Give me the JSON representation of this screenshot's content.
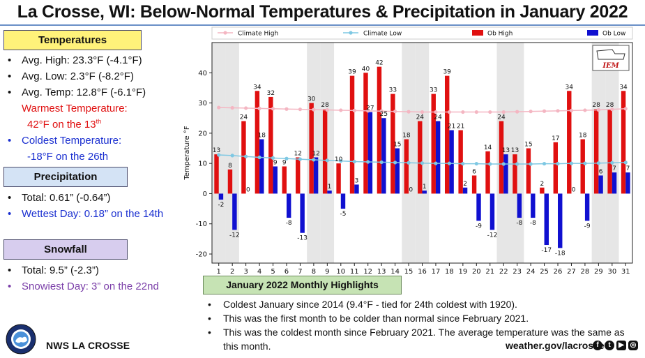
{
  "title": "La Crosse, WI:  Below-Normal Temperatures & Precipitation in January 2022",
  "temperatures": {
    "header": "Temperatures",
    "items": [
      {
        "text": "Avg. High:  23.3°F (-4.1°F)"
      },
      {
        "text": "Avg. Low:  2.3°F (-8.2°F)"
      },
      {
        "text": "Avg. Temp:  12.8°F (-6.1°F)"
      }
    ],
    "warmest_label": "Warmest Temperature:",
    "warmest_value": "42°F on the 13",
    "warmest_sup": "th",
    "coldest_label": "Coldest Temperature:",
    "coldest_value": "-18°F on the 26th"
  },
  "precipitation": {
    "header": "Precipitation",
    "total": "Total:  0.61” (-0.64”)",
    "wettest": "Wettest Day: 0.18” on the 14th"
  },
  "snowfall": {
    "header": "Snowfall",
    "total": "Total:  9.5” (-2.3”)",
    "snowiest": "Snowiest Day: 3” on the 22nd"
  },
  "highlights": {
    "header": "January 2022 Monthly Highlights",
    "items": [
      "Coldest January since 2014 (9.4°F - tied for 24th coldest with 1920).",
      "This was the first month to be colder than normal since February 2021.",
      "This was the coldest month since February 2021. The average temperature was the same as this month."
    ]
  },
  "footer": {
    "org": "NWS LA CROSSE",
    "website": "weather.gov/lacrosse",
    "logo_text": "NATIONAL WEATHER SERVICE",
    "logo_sub": "LA CROSSE, WI",
    "social_icons": [
      "facebook-icon",
      "twitter-icon",
      "youtube-icon",
      "instagram-icon"
    ]
  },
  "chart_data": {
    "type": "bar",
    "ylabel": "Temperature °F",
    "xlabel": "",
    "ylim": [
      -23,
      50
    ],
    "yticks": [
      -20,
      -10,
      0,
      10,
      20,
      30,
      40
    ],
    "categories": [
      "1",
      "2",
      "3",
      "4",
      "5",
      "6",
      "7",
      "8",
      "9",
      "10",
      "11",
      "12",
      "13",
      "14",
      "15",
      "16",
      "17",
      "18",
      "19",
      "20",
      "21",
      "22",
      "23",
      "24",
      "25",
      "26",
      "27",
      "28",
      "29",
      "30",
      "31"
    ],
    "weekend_shading_days": [
      1,
      2,
      8,
      9,
      15,
      16,
      22,
      23,
      29,
      30
    ],
    "legend_position": "top",
    "badge_text": "IEM",
    "series": [
      {
        "name": "Climate High",
        "kind": "line",
        "color": "#f4b6c2",
        "values": [
          28.5,
          28.4,
          28.3,
          28.2,
          28.1,
          28.0,
          27.9,
          27.8,
          27.7,
          27.6,
          27.5,
          27.4,
          27.3,
          27.2,
          27.1,
          27.0,
          27.0,
          27.0,
          27.0,
          27.0,
          27.0,
          27.0,
          27.1,
          27.2,
          27.3,
          27.4,
          27.5,
          27.6,
          27.7,
          27.9,
          28.1
        ]
      },
      {
        "name": "Climate Low",
        "kind": "line",
        "color": "#7ec8e3",
        "values": [
          12.8,
          12.6,
          12.3,
          12.0,
          11.8,
          11.6,
          11.4,
          11.2,
          11.0,
          10.8,
          10.6,
          10.5,
          10.4,
          10.3,
          10.2,
          10.1,
          10.0,
          10.0,
          9.9,
          9.9,
          9.8,
          9.8,
          9.8,
          9.8,
          9.9,
          9.9,
          10.0,
          10.0,
          10.1,
          10.2,
          10.3
        ]
      },
      {
        "name": "Ob High",
        "kind": "bar",
        "color": "#e01010",
        "values": [
          13,
          8,
          24,
          34,
          32,
          9,
          12,
          30,
          28,
          10,
          39,
          40,
          42,
          33,
          18,
          24,
          33,
          39,
          21,
          6,
          14,
          24,
          13,
          15,
          2,
          17,
          34,
          18,
          28,
          28,
          34
        ]
      },
      {
        "name": "Ob Low",
        "kind": "bar",
        "color": "#1010d0",
        "values": [
          -2,
          -12,
          0,
          18,
          9,
          -8,
          -13,
          12,
          1,
          -5,
          3,
          27,
          25,
          15,
          0,
          1,
          24,
          21,
          2,
          -9,
          -12,
          13,
          -8,
          -8,
          -17,
          -18,
          0,
          -9,
          6,
          7,
          7
        ]
      }
    ]
  }
}
